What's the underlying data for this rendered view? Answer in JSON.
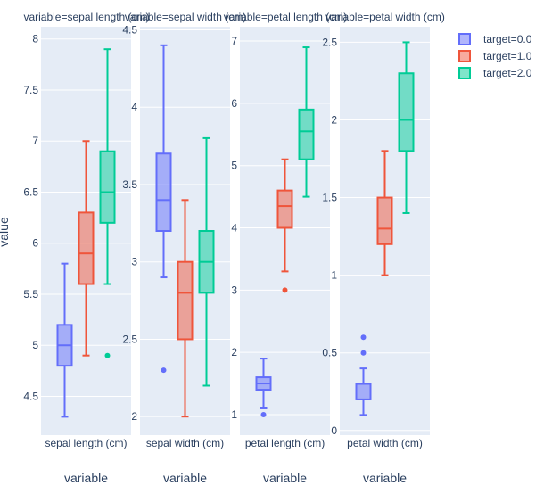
{
  "chart_data": {
    "type": "box",
    "ylabel": "value",
    "legend_position": "top-right",
    "legend": [
      {
        "name": "target=0.0",
        "color": "#636efa"
      },
      {
        "name": "target=1.0",
        "color": "#ef553b"
      },
      {
        "name": "target=2.0",
        "color": "#00cc96"
      }
    ],
    "panels": [
      {
        "title": "variable=sepal length (cm)",
        "category": "sepal length (cm)",
        "xlabel": "variable",
        "ylim": [
          4.12,
          8.12
        ],
        "ticks": [
          "4.5",
          "5",
          "5.5",
          "6",
          "6.5",
          "7",
          "7.5",
          "8"
        ],
        "boxes": [
          {
            "series": "target=0.0",
            "min": 4.3,
            "q1": 4.8,
            "median": 5.0,
            "q3": 5.2,
            "max": 5.8,
            "outliers": []
          },
          {
            "series": "target=1.0",
            "min": 4.9,
            "q1": 5.6,
            "median": 5.9,
            "q3": 6.3,
            "max": 7.0,
            "outliers": []
          },
          {
            "series": "target=2.0",
            "min": 5.6,
            "q1": 6.2,
            "median": 6.5,
            "q3": 6.9,
            "max": 7.9,
            "outliers": [
              4.9
            ]
          }
        ]
      },
      {
        "title": "variable=sepal width (cm)",
        "category": "sepal width (cm)",
        "xlabel": "variable",
        "ylim": [
          1.88,
          4.52
        ],
        "ticks": [
          "2",
          "2.5",
          "3",
          "3.5",
          "4",
          "4.5"
        ],
        "boxes": [
          {
            "series": "target=0.0",
            "min": 2.9,
            "q1": 3.2,
            "median": 3.4,
            "q3": 3.7,
            "max": 4.4,
            "outliers": [
              2.3
            ]
          },
          {
            "series": "target=1.0",
            "min": 2.0,
            "q1": 2.5,
            "median": 2.8,
            "q3": 3.0,
            "max": 3.4,
            "outliers": []
          },
          {
            "series": "target=2.0",
            "min": 2.2,
            "q1": 2.8,
            "median": 3.0,
            "q3": 3.2,
            "max": 3.8,
            "outliers": []
          }
        ]
      },
      {
        "title": "variable=petal length (cm)",
        "category": "petal length (cm)",
        "xlabel": "variable",
        "ylim": [
          0.67,
          7.23
        ],
        "ticks": [
          "1",
          "2",
          "3",
          "4",
          "5",
          "6",
          "7"
        ],
        "boxes": [
          {
            "series": "target=0.0",
            "min": 1.1,
            "q1": 1.4,
            "median": 1.5,
            "q3": 1.6,
            "max": 1.9,
            "outliers": [
              1.0
            ]
          },
          {
            "series": "target=1.0",
            "min": 3.3,
            "q1": 4.0,
            "median": 4.35,
            "q3": 4.6,
            "max": 5.1,
            "outliers": [
              3.0
            ]
          },
          {
            "series": "target=2.0",
            "min": 4.5,
            "q1": 5.1,
            "median": 5.55,
            "q3": 5.9,
            "max": 6.9,
            "outliers": []
          }
        ]
      },
      {
        "title": "variable=petal width (cm)",
        "category": "petal width (cm)",
        "xlabel": "variable",
        "ylim": [
          -0.03,
          2.6
        ],
        "ticks": [
          "0",
          "0.5",
          "1",
          "1.5",
          "2",
          "2.5"
        ],
        "boxes": [
          {
            "series": "target=0.0",
            "min": 0.1,
            "q1": 0.2,
            "median": 0.2,
            "q3": 0.3,
            "max": 0.4,
            "outliers": [
              0.5,
              0.6
            ]
          },
          {
            "series": "target=1.0",
            "min": 1.0,
            "q1": 1.2,
            "median": 1.3,
            "q3": 1.5,
            "max": 1.8,
            "outliers": []
          },
          {
            "series": "target=2.0",
            "min": 1.4,
            "q1": 1.8,
            "median": 2.0,
            "q3": 2.3,
            "max": 2.5,
            "outliers": []
          }
        ]
      }
    ]
  }
}
